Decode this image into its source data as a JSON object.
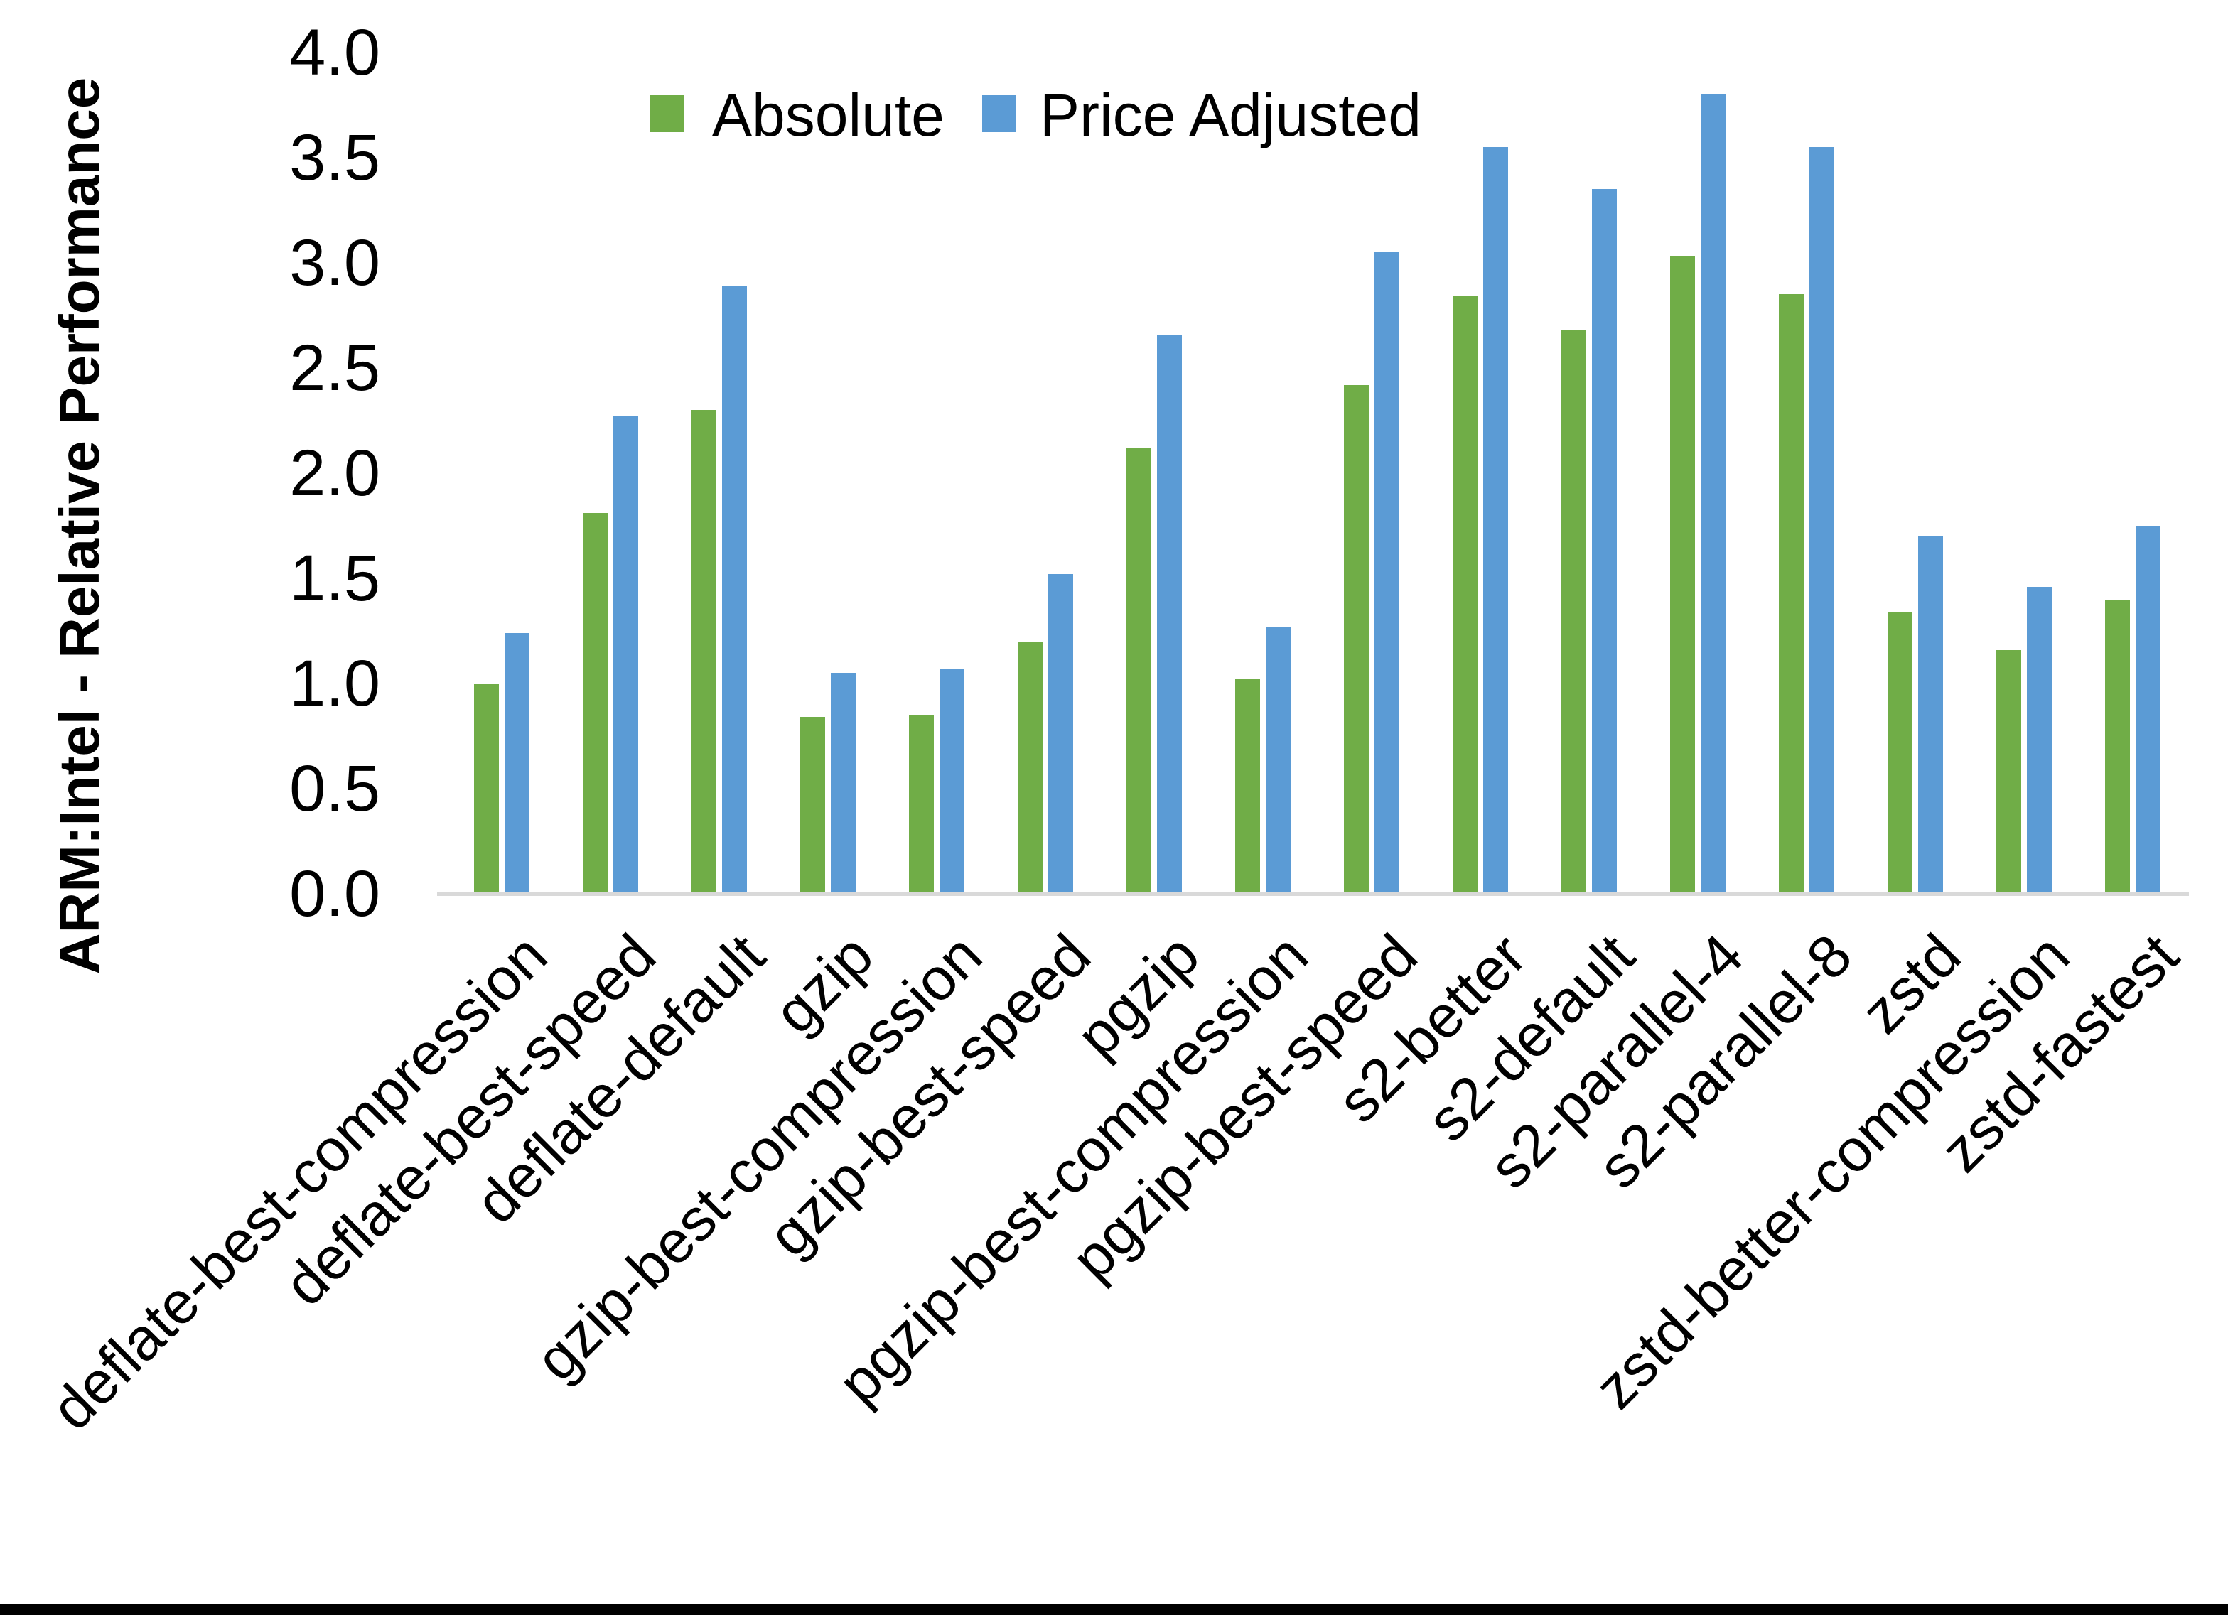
{
  "chart_data": {
    "type": "bar",
    "title": "",
    "xlabel": "",
    "ylabel": "ARM:Intel - Relative Performance",
    "ylim": [
      0.0,
      4.0
    ],
    "ytick_step": 0.5,
    "yticks": [
      "0.0",
      "0.5",
      "1.0",
      "1.5",
      "2.0",
      "2.5",
      "3.0",
      "3.5",
      "4.0"
    ],
    "grid": false,
    "legend_position": "top-center",
    "categories": [
      "deflate-best-compression",
      "deflate-best-speed",
      "deflate-default",
      "gzip",
      "gzip-best-compression",
      "gzip-best-speed",
      "pgzip",
      "pgzip-best-compression",
      "pgzip-best-speed",
      "s2-better",
      "s2-default",
      "s2-parallel-4",
      "s2-parallel-8",
      "zstd",
      "zstd-better-compression",
      "zstd-fastest"
    ],
    "series": [
      {
        "name": "Absolute",
        "color": "#70AD47",
        "values": [
          1.0,
          1.81,
          2.3,
          0.84,
          0.85,
          1.2,
          2.12,
          1.02,
          2.42,
          2.84,
          2.68,
          3.03,
          2.85,
          1.34,
          1.16,
          1.4
        ]
      },
      {
        "name": "Price Adjusted",
        "color": "#5B9BD5",
        "values": [
          1.24,
          2.27,
          2.89,
          1.05,
          1.07,
          1.52,
          2.66,
          1.27,
          3.05,
          3.55,
          3.35,
          3.8,
          3.55,
          1.7,
          1.46,
          1.75
        ]
      }
    ]
  }
}
